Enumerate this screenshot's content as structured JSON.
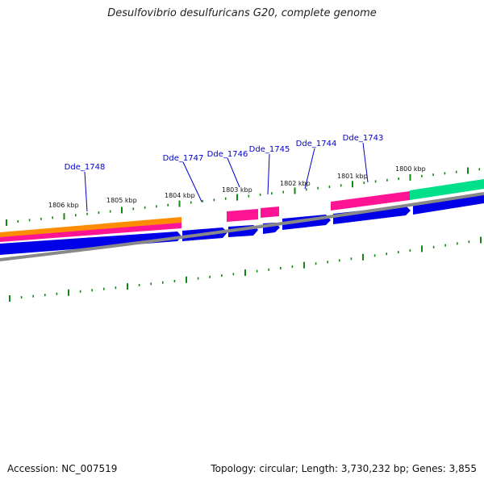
{
  "title": "Desulfovibrio desulfuricans G20, complete genome",
  "footer": {
    "accession": "Accession: NC_007519",
    "info": "Topology: circular; Length: 3,730,232 bp; Genes: 3,855"
  },
  "colors": {
    "gene_label": "#0000cc",
    "tick": "#118811",
    "backbone": "#888888",
    "orange_track": "#ff8c00",
    "magenta_track": "#ff1493",
    "green_track": "#00e08a",
    "gene_arrow": "#0000e8"
  },
  "scale_labels": [
    "1806 kbp",
    "1805 kbp",
    "1804 kbp",
    "1803 kbp",
    "1802 kbp",
    "1801 kbp",
    "1800 kbp"
  ],
  "genes": [
    {
      "label": "Dde_1748"
    },
    {
      "label": "Dde_1747"
    },
    {
      "label": "Dde_1746"
    },
    {
      "label": "Dde_1745"
    },
    {
      "label": "Dde_1744"
    },
    {
      "label": "Dde_1743"
    }
  ]
}
